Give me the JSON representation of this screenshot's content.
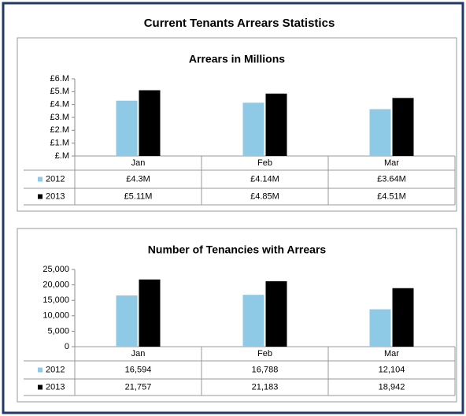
{
  "title": "Current Tenants Arrears Statistics",
  "chart_data": [
    {
      "type": "bar",
      "title": "Arrears in Millions",
      "categories": [
        "Jan",
        "Feb",
        "Mar"
      ],
      "series": [
        {
          "name": "2012",
          "color": "#8ecae6",
          "values": [
            4.3,
            4.14,
            3.64
          ],
          "value_labels": [
            "£4.3M",
            "£4.14M",
            "£3.64M"
          ]
        },
        {
          "name": "2013",
          "color": "#000000",
          "values": [
            5.11,
            4.85,
            4.51
          ],
          "value_labels": [
            "£5.11M",
            "£4.85M",
            "£4.51M"
          ]
        }
      ],
      "ylim": [
        0,
        6
      ],
      "yticks": [
        {
          "value": 0,
          "label": "£.M"
        },
        {
          "value": 1,
          "label": "£1.M"
        },
        {
          "value": 2,
          "label": "£2.M"
        },
        {
          "value": 3,
          "label": "£3.M"
        },
        {
          "value": 4,
          "label": "£4.M"
        },
        {
          "value": 5,
          "label": "£5.M"
        },
        {
          "value": 6,
          "label": "£6.M"
        }
      ]
    },
    {
      "type": "bar",
      "title": "Number of Tenancies with Arrears",
      "categories": [
        "Jan",
        "Feb",
        "Mar"
      ],
      "series": [
        {
          "name": "2012",
          "color": "#8ecae6",
          "values": [
            16594,
            16788,
            12104
          ],
          "value_labels": [
            "16,594",
            "16,788",
            "12,104"
          ]
        },
        {
          "name": "2013",
          "color": "#000000",
          "values": [
            21757,
            21183,
            18942
          ],
          "value_labels": [
            "21,757",
            "21,183",
            "18,942"
          ]
        }
      ],
      "ylim": [
        0,
        25000
      ],
      "yticks": [
        0,
        {
          "value": 5000,
          "label": "5,000"
        },
        {
          "value": 10000,
          "label": "10,000"
        },
        {
          "value": 15000,
          "label": "15,000"
        },
        {
          "value": 20000,
          "label": "20,000"
        },
        {
          "value": 25000,
          "label": "25,000"
        }
      ]
    }
  ]
}
